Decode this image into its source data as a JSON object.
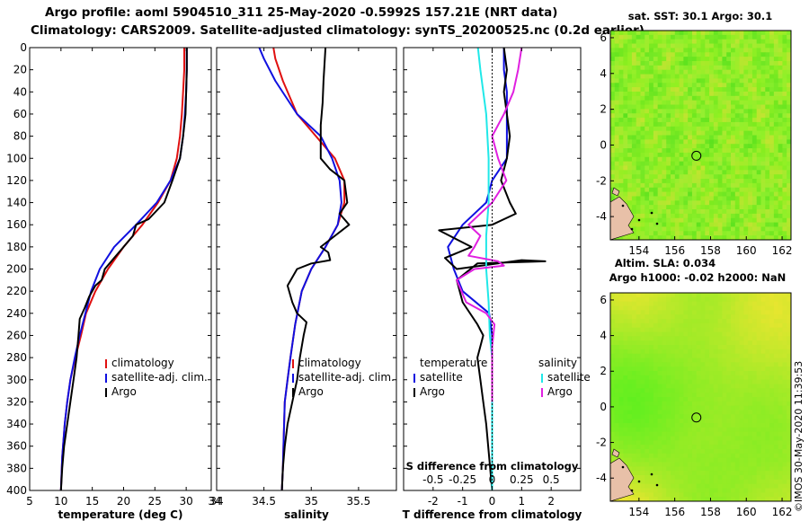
{
  "header": {
    "title_line1": "Argo profile: aoml 5904510_311 25-May-2020 -0.5992S 157.21E (NRT data)",
    "title_line2": "Climatology: CARS2009. Satellite-adjusted climatology: synTS_20200525.nc (0.2d earlier)"
  },
  "colors": {
    "climatology": "#e01010",
    "satellite": "#1010e0",
    "argo": "#000000",
    "satellite_salinity": "#20e8e8",
    "argo_salinity": "#e020e0",
    "land": "#e8c0a8"
  },
  "watermark": "©IMOS 30-May-2020 11:39:53",
  "chart_data": [
    {
      "type": "line",
      "name": "temperature-profile",
      "xlabel": "temperature (deg C)",
      "xlim": [
        5,
        34
      ],
      "xticks": [
        5,
        10,
        15,
        20,
        25,
        30
      ],
      "ylim": [
        0,
        400
      ],
      "y_inverted": true,
      "yticks": [
        0,
        20,
        40,
        60,
        80,
        100,
        120,
        140,
        160,
        180,
        200,
        220,
        240,
        260,
        280,
        300,
        320,
        340,
        360,
        380,
        400
      ],
      "legend": [
        "climatology",
        "satellite-adj. clim.",
        "Argo"
      ],
      "legend_position": "lower-right",
      "series": [
        {
          "name": "climatology",
          "color_key": "climatology",
          "x": [
            29.7,
            29.7,
            29.5,
            29.3,
            29.0,
            28.5,
            27.5,
            25.5,
            23.0,
            20.0,
            17.5,
            15.5,
            14.0,
            13.2,
            12.3,
            11.5,
            11.0,
            10.6,
            10.2,
            10.0
          ],
          "y": [
            0,
            20,
            40,
            60,
            80,
            100,
            120,
            140,
            160,
            180,
            200,
            220,
            240,
            260,
            280,
            300,
            320,
            340,
            370,
            400
          ]
        },
        {
          "name": "satellite-adj. clim.",
          "color_key": "satellite",
          "x": [
            30.1,
            30.1,
            30.0,
            29.8,
            29.5,
            29.0,
            27.5,
            25.3,
            22.0,
            18.5,
            16.2,
            14.8,
            13.9,
            13.0,
            12.2,
            11.5,
            11.0,
            10.6,
            10.2,
            10.0
          ],
          "y": [
            0,
            20,
            40,
            60,
            80,
            100,
            120,
            140,
            160,
            180,
            200,
            220,
            240,
            260,
            280,
            300,
            320,
            340,
            370,
            400
          ]
        },
        {
          "name": "Argo",
          "color_key": "argo",
          "x": [
            30.1,
            30.1,
            30.0,
            29.9,
            29.5,
            29.0,
            27.8,
            26.5,
            24.0,
            22.0,
            21.5,
            20.0,
            18.5,
            17.0,
            16.5,
            15.5,
            14.5,
            13.8,
            13.0,
            12.8,
            12.5,
            12.0,
            11.5,
            11.0,
            10.5,
            10.2,
            10.0
          ],
          "y": [
            0,
            20,
            40,
            60,
            80,
            100,
            120,
            140,
            155,
            160,
            170,
            180,
            190,
            200,
            210,
            215,
            225,
            235,
            245,
            260,
            280,
            300,
            320,
            340,
            360,
            380,
            400
          ]
        }
      ]
    },
    {
      "type": "line",
      "name": "salinity-profile",
      "xlabel": "salinity",
      "xlim": [
        34,
        35.9
      ],
      "xticks": [
        34,
        34.5,
        35,
        35.5
      ],
      "xtick_labels": [
        "34",
        "34.5",
        "35",
        "35.5"
      ],
      "ylim": [
        0,
        400
      ],
      "y_inverted": true,
      "legend": [
        "climatology",
        "satellite-adj. clim.",
        "Argo"
      ],
      "legend_position": "lower-right",
      "series": [
        {
          "name": "climatology",
          "color_key": "climatology",
          "x": [
            34.6,
            34.62,
            34.7,
            34.85,
            35.05,
            35.25,
            35.35,
            35.35,
            35.28,
            35.15,
            35.0,
            34.9,
            34.83,
            34.78,
            34.75,
            34.72,
            34.71,
            34.7,
            34.69
          ],
          "y": [
            0,
            10,
            30,
            60,
            80,
            100,
            120,
            140,
            160,
            180,
            200,
            220,
            250,
            280,
            300,
            320,
            350,
            380,
            400
          ]
        },
        {
          "name": "satellite-adj. clim.",
          "color_key": "satellite",
          "x": [
            34.45,
            34.5,
            34.62,
            34.85,
            35.1,
            35.22,
            35.3,
            35.32,
            35.28,
            35.15,
            35.0,
            34.9,
            34.83,
            34.78,
            34.75,
            34.72,
            34.71,
            34.7,
            34.69
          ],
          "y": [
            0,
            10,
            30,
            60,
            80,
            100,
            120,
            140,
            160,
            180,
            200,
            220,
            250,
            280,
            300,
            320,
            350,
            380,
            400
          ]
        },
        {
          "name": "Argo",
          "color_key": "argo",
          "x": [
            35.15,
            35.13,
            35.12,
            35.1,
            35.1,
            35.1,
            35.2,
            35.35,
            35.38,
            35.3,
            35.4,
            35.25,
            35.1,
            35.18,
            35.2,
            35.0,
            34.85,
            34.75,
            34.8,
            34.85,
            34.95,
            34.92,
            34.88,
            34.85,
            34.8,
            34.75,
            34.72,
            34.7,
            34.69
          ],
          "y": [
            0,
            30,
            50,
            70,
            80,
            100,
            110,
            120,
            140,
            150,
            160,
            170,
            180,
            185,
            192,
            195,
            200,
            215,
            230,
            240,
            248,
            260,
            280,
            300,
            320,
            340,
            360,
            380,
            400
          ]
        }
      ]
    },
    {
      "type": "line",
      "name": "difference-profile",
      "xlabel": "T difference from climatology",
      "xlim": [
        -3,
        3
      ],
      "xticks": [
        -2,
        -1,
        0,
        1,
        2
      ],
      "top_axis_label": "S difference from climatology",
      "top_ticks": [
        -0.5,
        -0.25,
        0,
        0.25,
        0.5
      ],
      "top_tick_labels": [
        "-0.5",
        "-0.25",
        "0",
        "0.25",
        "0.5"
      ],
      "ylim": [
        0,
        400
      ],
      "y_inverted": true,
      "legend_left_title": "temperature",
      "legend_right_title": "salinity",
      "legend_left": [
        "satellite",
        "Argo"
      ],
      "legend_right": [
        "satellite",
        "Argo"
      ],
      "series": [
        {
          "name": "temperature satellite",
          "axis": "T",
          "color_key": "satellite",
          "x": [
            0.4,
            0.4,
            0.5,
            0.5,
            0.5,
            0.5,
            0.0,
            -0.2,
            -1.0,
            -1.5,
            -1.3,
            -1.0,
            -0.1,
            0.0,
            0.0,
            0.0,
            0.0,
            0.0,
            0.0
          ],
          "y": [
            0,
            20,
            40,
            60,
            80,
            100,
            120,
            140,
            160,
            180,
            200,
            220,
            240,
            260,
            280,
            300,
            320,
            360,
            400
          ]
        },
        {
          "name": "temperature Argo",
          "axis": "T",
          "color_key": "argo",
          "x": [
            0.4,
            0.5,
            0.4,
            0.5,
            0.6,
            0.5,
            0.3,
            0.6,
            0.8,
            0.0,
            -1.8,
            -0.7,
            -1.6,
            -1.2,
            1.0,
            1.8,
            -0.5,
            -1.2,
            -1.0,
            -0.5,
            -0.3,
            -0.5,
            -0.4,
            -0.3,
            -0.2,
            -0.1,
            0.0
          ],
          "y": [
            0,
            20,
            40,
            60,
            80,
            100,
            120,
            140,
            150,
            160,
            165,
            180,
            190,
            200,
            192,
            193,
            195,
            210,
            230,
            250,
            260,
            280,
            300,
            320,
            340,
            370,
            400
          ]
        },
        {
          "name": "salinity satellite",
          "axis": "S",
          "color_key": "satellite_salinity",
          "x": [
            -0.12,
            -0.1,
            -0.05,
            -0.03,
            -0.03,
            -0.05,
            -0.05,
            -0.03,
            -0.02,
            0.0,
            0.0,
            0.0,
            0.0,
            0.0
          ],
          "y": [
            0,
            20,
            60,
            100,
            140,
            170,
            200,
            230,
            260,
            280,
            300,
            320,
            360,
            400
          ]
        },
        {
          "name": "salinity Argo",
          "axis": "S",
          "color_key": "argo_salinity",
          "x": [
            0.25,
            0.22,
            0.18,
            0.1,
            0.0,
            0.05,
            0.12,
            0.0,
            -0.2,
            -0.1,
            -0.15,
            -0.2,
            0.05,
            0.1,
            -0.15,
            -0.3,
            -0.22,
            -0.05,
            0.02,
            0.0,
            0.0,
            0.0
          ],
          "y": [
            0,
            20,
            40,
            60,
            80,
            100,
            120,
            140,
            160,
            170,
            180,
            188,
            193,
            197,
            200,
            210,
            230,
            240,
            250,
            270,
            300,
            320
          ]
        }
      ]
    },
    {
      "type": "heatmap",
      "name": "sst-map",
      "title": "sat. SST: 30.1  Argo: 30.1",
      "xlim": [
        152.4,
        162.5
      ],
      "xticks": [
        154,
        156,
        158,
        160,
        162
      ],
      "ylim": [
        -5.3,
        6.4
      ],
      "yticks": [
        -4,
        -2,
        0,
        2,
        4,
        6
      ],
      "argo_position": {
        "lon": 157.21,
        "lat": -0.5992
      }
    },
    {
      "type": "heatmap",
      "name": "sla-map",
      "title": "Altim. SLA: 0.034",
      "subtitle": "Argo h1000: -0.02 h2000: NaN",
      "xlim": [
        152.4,
        162.5
      ],
      "xticks": [
        154,
        156,
        158,
        160,
        162
      ],
      "ylim": [
        -5.3,
        6.4
      ],
      "yticks": [
        -4,
        -2,
        0,
        2,
        4,
        6
      ],
      "argo_position": {
        "lon": 157.21,
        "lat": -0.5992
      }
    }
  ]
}
